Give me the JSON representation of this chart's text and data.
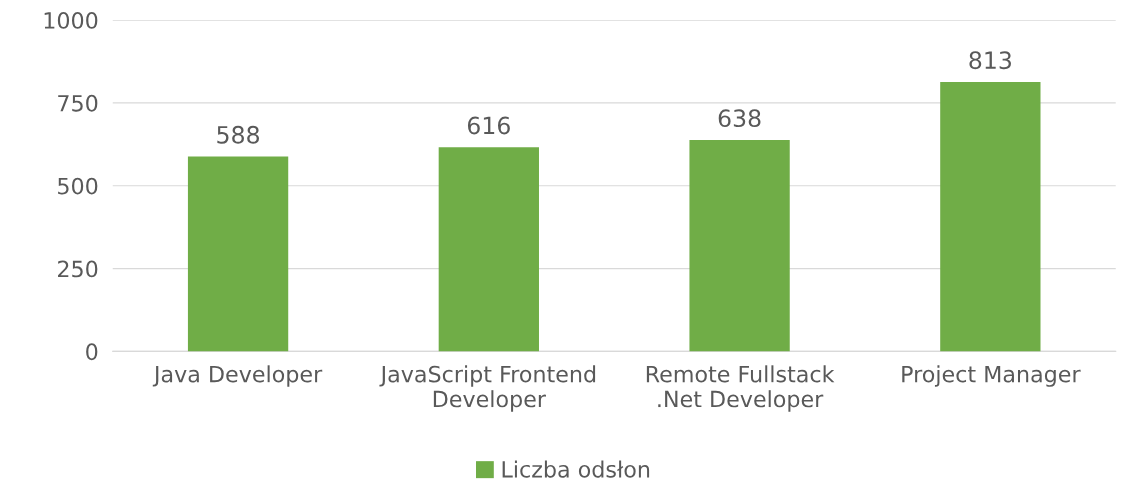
{
  "chart_data": {
    "type": "bar",
    "categories": [
      "Java Developer",
      "JavaScript Frontend\nDeveloper",
      "Remote Fullstack\n.Net Developer",
      "Project Manager"
    ],
    "series": [
      {
        "name": "Liczba odsłon",
        "color": "#70ad47",
        "values": [
          588,
          616,
          638,
          813
        ]
      }
    ],
    "ylim": [
      0,
      1000
    ],
    "yticks": [
      0,
      250,
      500,
      750,
      1000
    ],
    "grid": "y",
    "legend": "bottom",
    "data_labels": true
  }
}
